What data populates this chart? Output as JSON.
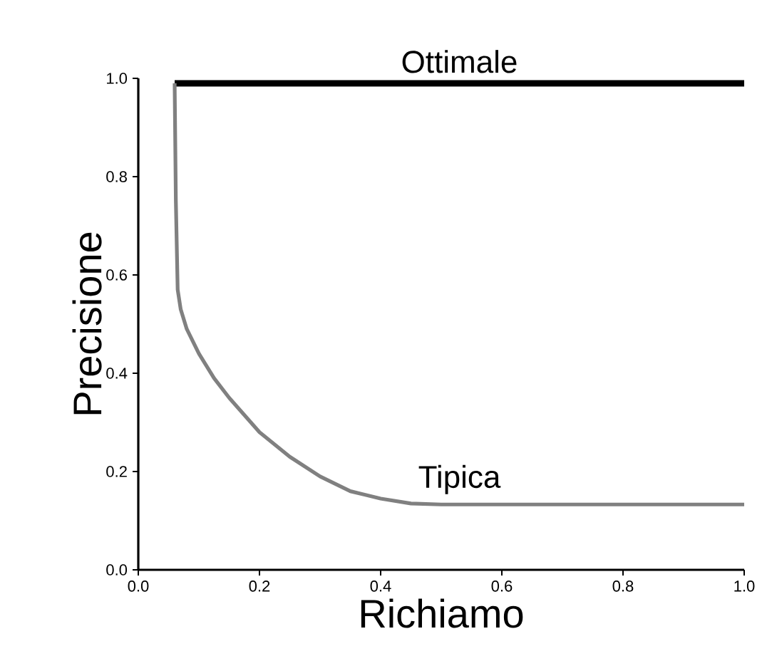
{
  "chart_data": {
    "type": "line",
    "xlabel": "Richiamo",
    "ylabel": "Precisione",
    "xlim": [
      0,
      1
    ],
    "ylim": [
      0,
      1
    ],
    "xticks": [
      {
        "value": 0,
        "label": "0.0"
      },
      0.2,
      0.4,
      0.6,
      0.8,
      {
        "value": 1,
        "label": "1.0"
      }
    ],
    "yticks": [
      {
        "value": 0,
        "label": "0.0"
      },
      0.2,
      0.4,
      0.6,
      0.8,
      {
        "value": 1,
        "label": "1.0"
      }
    ],
    "grid": false,
    "legend": false,
    "marker": "none",
    "line_style": "solid",
    "series": [
      {
        "name": "Ottimale",
        "color": "#000000",
        "x": [
          0.06,
          1.0
        ],
        "values": [
          0.99,
          0.99
        ]
      },
      {
        "name": "Tipica",
        "color": "#808080",
        "x": [
          0.06,
          0.062,
          0.065,
          0.07,
          0.08,
          0.1,
          0.125,
          0.15,
          0.2,
          0.25,
          0.3,
          0.35,
          0.4,
          0.45,
          0.5,
          0.6,
          0.8,
          1.0
        ],
        "values": [
          0.99,
          0.75,
          0.57,
          0.53,
          0.49,
          0.44,
          0.39,
          0.35,
          0.28,
          0.23,
          0.19,
          0.16,
          0.145,
          0.135,
          0.133,
          0.133,
          0.133,
          0.133
        ]
      }
    ]
  }
}
